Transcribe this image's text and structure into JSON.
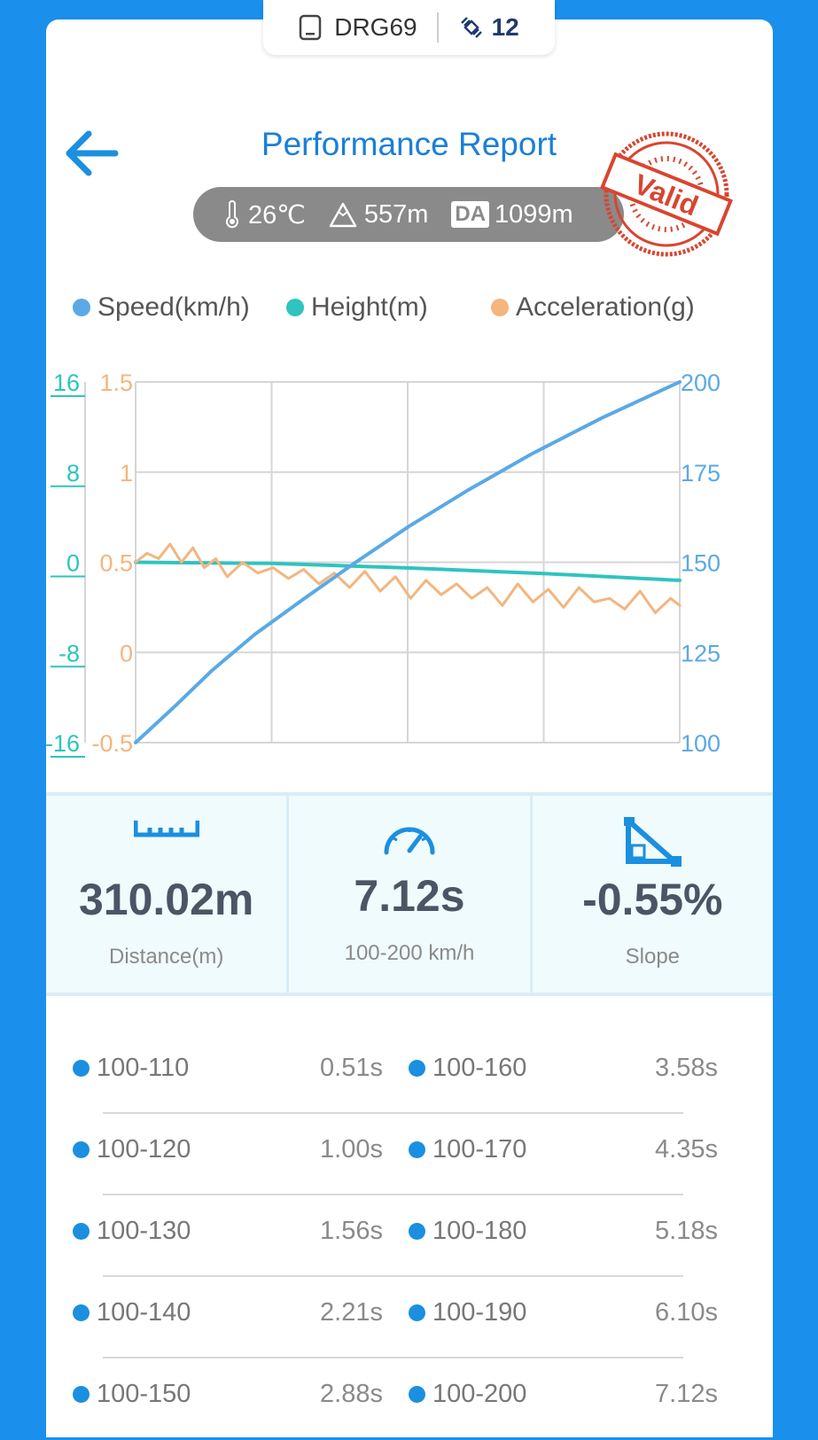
{
  "header": {
    "device": "DRG69",
    "satellites": "12",
    "title": "Performance Report",
    "stamp": "Valid"
  },
  "conditions": {
    "temperature": "26℃",
    "altitude": "557m",
    "da_label": "DA",
    "density_altitude": "1099m"
  },
  "legend": {
    "speed": "Speed(km/h)",
    "height": "Height(m)",
    "acceleration": "Acceleration(g)"
  },
  "colors": {
    "speed": "#5aa9e6",
    "height": "#2ec4bf",
    "acceleration": "#f4b57f",
    "accent": "#1b7fd8",
    "stamp": "#d9452f"
  },
  "chart_data": {
    "type": "line",
    "x_range": [
      0,
      7.12
    ],
    "grid": true,
    "series": [
      {
        "name": "Speed(km/h)",
        "axis": "right",
        "ylim": [
          100,
          200
        ],
        "ticks": [
          "200",
          "175",
          "150",
          "125",
          "100"
        ],
        "x": [
          0,
          0.51,
          1.0,
          1.56,
          2.21,
          2.88,
          3.58,
          4.35,
          5.18,
          6.1,
          7.12
        ],
        "y": [
          100,
          110,
          120,
          130,
          140,
          150,
          160,
          170,
          180,
          190,
          200
        ]
      },
      {
        "name": "Height(m)",
        "axis": "left-outer",
        "ylim": [
          -16,
          16
        ],
        "ticks": [
          "16",
          "8",
          "0",
          "-8",
          "-16"
        ],
        "x": [
          0,
          1.78,
          3.56,
          5.34,
          7.12
        ],
        "y": [
          0,
          -0.1,
          -0.5,
          -1.0,
          -1.6
        ]
      },
      {
        "name": "Acceleration(g)",
        "axis": "left-inner",
        "ylim": [
          -0.5,
          1.5
        ],
        "ticks": [
          "1.5",
          "1",
          "0.5",
          "0",
          "-0.5"
        ],
        "x": [
          0,
          0.15,
          0.3,
          0.45,
          0.6,
          0.75,
          0.9,
          1.05,
          1.2,
          1.4,
          1.6,
          1.8,
          2.0,
          2.2,
          2.4,
          2.6,
          2.8,
          3.0,
          3.2,
          3.4,
          3.6,
          3.8,
          4.0,
          4.2,
          4.4,
          4.6,
          4.8,
          5.0,
          5.2,
          5.4,
          5.6,
          5.8,
          6.0,
          6.2,
          6.4,
          6.6,
          6.8,
          7.0,
          7.12
        ],
        "y": [
          0.5,
          0.55,
          0.52,
          0.6,
          0.5,
          0.58,
          0.47,
          0.52,
          0.42,
          0.5,
          0.44,
          0.47,
          0.41,
          0.46,
          0.38,
          0.44,
          0.36,
          0.45,
          0.34,
          0.42,
          0.3,
          0.4,
          0.32,
          0.38,
          0.3,
          0.36,
          0.26,
          0.38,
          0.28,
          0.35,
          0.25,
          0.36,
          0.28,
          0.3,
          0.24,
          0.34,
          0.22,
          0.3,
          0.26
        ]
      }
    ]
  },
  "stats": [
    {
      "value": "310.02m",
      "label": "Distance(m)"
    },
    {
      "value": "7.12s",
      "label": "100-200 km/h"
    },
    {
      "value": "-0.55%",
      "label": "Slope"
    }
  ],
  "splits": [
    {
      "l_label": "100-110",
      "l_time": "0.51s",
      "r_label": "100-160",
      "r_time": "3.58s"
    },
    {
      "l_label": "100-120",
      "l_time": "1.00s",
      "r_label": "100-170",
      "r_time": "4.35s"
    },
    {
      "l_label": "100-130",
      "l_time": "1.56s",
      "r_label": "100-180",
      "r_time": "5.18s"
    },
    {
      "l_label": "100-140",
      "l_time": "2.21s",
      "r_label": "100-190",
      "r_time": "6.10s"
    },
    {
      "l_label": "100-150",
      "l_time": "2.88s",
      "r_label": "100-200",
      "r_time": "7.12s"
    }
  ]
}
